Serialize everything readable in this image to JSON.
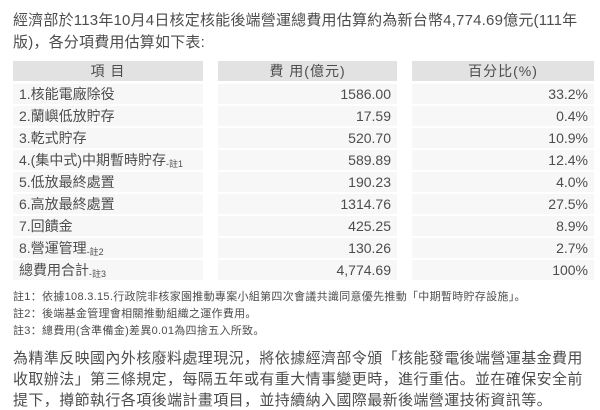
{
  "intro": "經濟部於113年10月4日核定核能後端營運總費用估算約為新台幣4,774.69億元(111年版)，各分項費用估算如下表:",
  "table": {
    "headers": [
      "項 目",
      "費 用(億元)",
      "百分比(%)"
    ],
    "rows": [
      {
        "label": "1.核能電廠除役",
        "note_ref": "",
        "cost": "1586.00",
        "percent": "33.2%"
      },
      {
        "label": "2.蘭嶼低放貯存",
        "note_ref": "",
        "cost": "17.59",
        "percent": "0.4%"
      },
      {
        "label": "3.乾式貯存",
        "note_ref": "",
        "cost": "520.70",
        "percent": "10.9%"
      },
      {
        "label": "4.(集中式)中期暫時貯存",
        "note_ref": "-註1",
        "cost": "589.89",
        "percent": "12.4%"
      },
      {
        "label": "5.低放最終處置",
        "note_ref": "",
        "cost": "190.23",
        "percent": "4.0%"
      },
      {
        "label": "6.高放最終處置",
        "note_ref": "",
        "cost": "1314.76",
        "percent": "27.5%"
      },
      {
        "label": "7.回饋金",
        "note_ref": "",
        "cost": "425.25",
        "percent": "8.9%"
      },
      {
        "label": "8.營運管理",
        "note_ref": "-註2",
        "cost": "130.26",
        "percent": "2.7%"
      },
      {
        "label": "總費用合計",
        "note_ref": "-註3",
        "cost": "4,774.69",
        "percent": "100%",
        "is_total": true
      }
    ]
  },
  "notes": [
    "註1：依據108.3.15.行政院非核家園推動專案小組第四次會議共識同意優先推動「中期暫時貯存設施」。",
    "註2：後端基金管理會相關推動組織之運作費用。",
    "註3：總費用(含準備金)差異0.01為四捨五入所致。"
  ],
  "footer_paragraph": "為精準反映國內外核廢料處理現況，將依據經濟部令頒「核能發電後端營運基金費用收取辦法」第三條規定，每隔五年或有重大情事變更時，進行重估。並在確保安全前提下，撙節執行各項後端計畫項目，並持續納入國際最新後端營運技術資訊等。",
  "colors": {
    "header_bg": "#e2e2e2",
    "row_bg": "#f7f7f7",
    "text": "#4d4d4d"
  }
}
